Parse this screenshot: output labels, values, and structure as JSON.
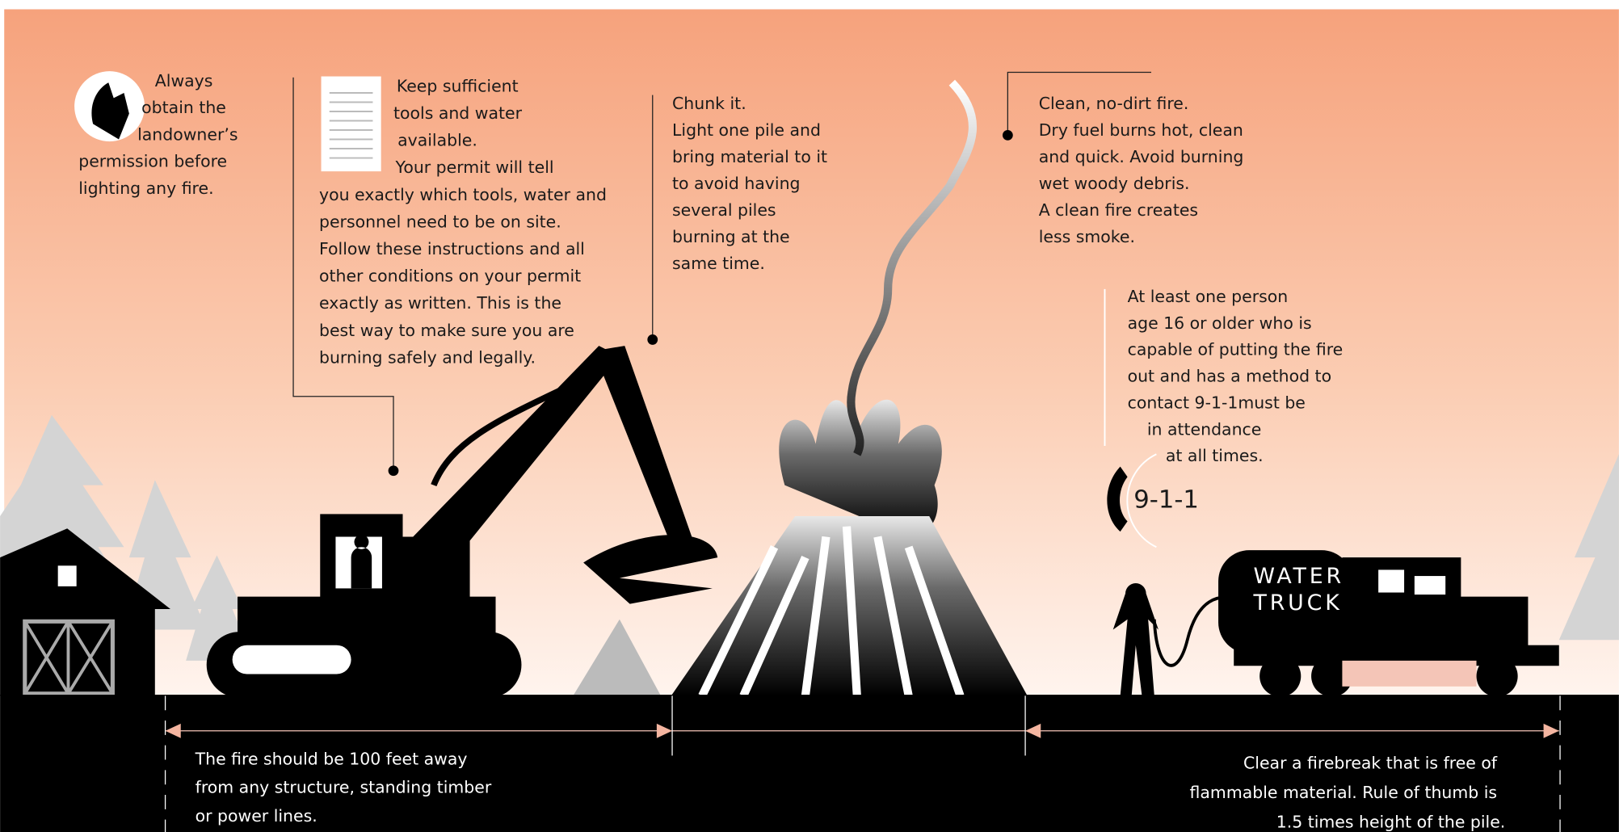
{
  "callouts": [
    {
      "lines": [
        "Always",
        "obtain the",
        "landowner’s",
        "permission before",
        "lighting any fire."
      ]
    },
    {
      "lines": [
        "Keep sufficient",
        "tools and water",
        "available.",
        "Your permit will tell",
        "you exactly which tools, water and",
        "personnel need to be on site.",
        "Follow these instructions and all",
        "other conditions on your permit",
        "exactly as written. This is the",
        "best way to make sure you are",
        "burning safely and legally."
      ]
    },
    {
      "lines": [
        "Chunk it.",
        "Light one pile and",
        "bring material to it",
        "to avoid having",
        "several piles",
        "burning at the",
        "same time."
      ]
    },
    {
      "lines": [
        "Clean, no-dirt fire.",
        "Dry fuel burns hot, clean",
        "and quick. Avoid burning",
        "wet woody debris.",
        "A clean fire creates",
        "less smoke."
      ]
    },
    {
      "lines": [
        "At least one person",
        "age 16 or older who is",
        "capable of putting the fire",
        "out and has a method to",
        "contact 9-1-1must be",
        "in attendance",
        "at all times."
      ]
    }
  ],
  "phone": "9-1-1",
  "truck": [
    "WATER",
    "TRUCK"
  ],
  "distances": [
    {
      "lines": [
        "The fire should be  100 feet away",
        "from any structure, standing timber",
        "or power lines."
      ]
    },
    {
      "lines": [
        "Clear a firebreak that is free of",
        "flammable material. Rule of thumb is",
        "1.5 times  height of the pile."
      ]
    }
  ]
}
